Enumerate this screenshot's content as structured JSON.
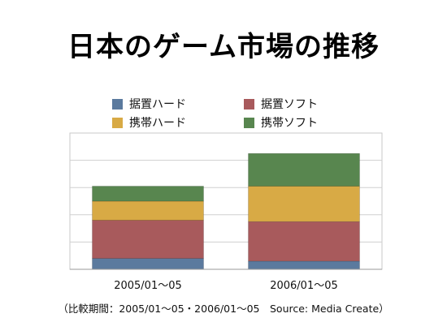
{
  "title": "日本のゲーム市場の推移",
  "footnote": "（比較期間：2005/01〜05・2006/01〜05　Source: Media Create）",
  "chart_data": {
    "type": "bar",
    "stacked": true,
    "categories": [
      "2005/01〜05",
      "2006/01〜05"
    ],
    "series": [
      {
        "name": "据置ハード",
        "color": "#5b7a9e",
        "values": [
          0.4,
          0.3
        ]
      },
      {
        "name": "据置ソフト",
        "color": "#a85a5c",
        "values": [
          1.4,
          1.45
        ]
      },
      {
        "name": "携帯ハード",
        "color": "#d8aa45",
        "values": [
          0.7,
          1.3
        ]
      },
      {
        "name": "携帯ソフト",
        "color": "#58864f",
        "values": [
          0.55,
          1.2
        ]
      }
    ],
    "ylim": [
      0,
      5
    ],
    "y_gridlines": [
      1,
      2,
      3,
      4
    ],
    "y_ticks_labeled": false,
    "grid": true,
    "legend_placement": "top"
  }
}
